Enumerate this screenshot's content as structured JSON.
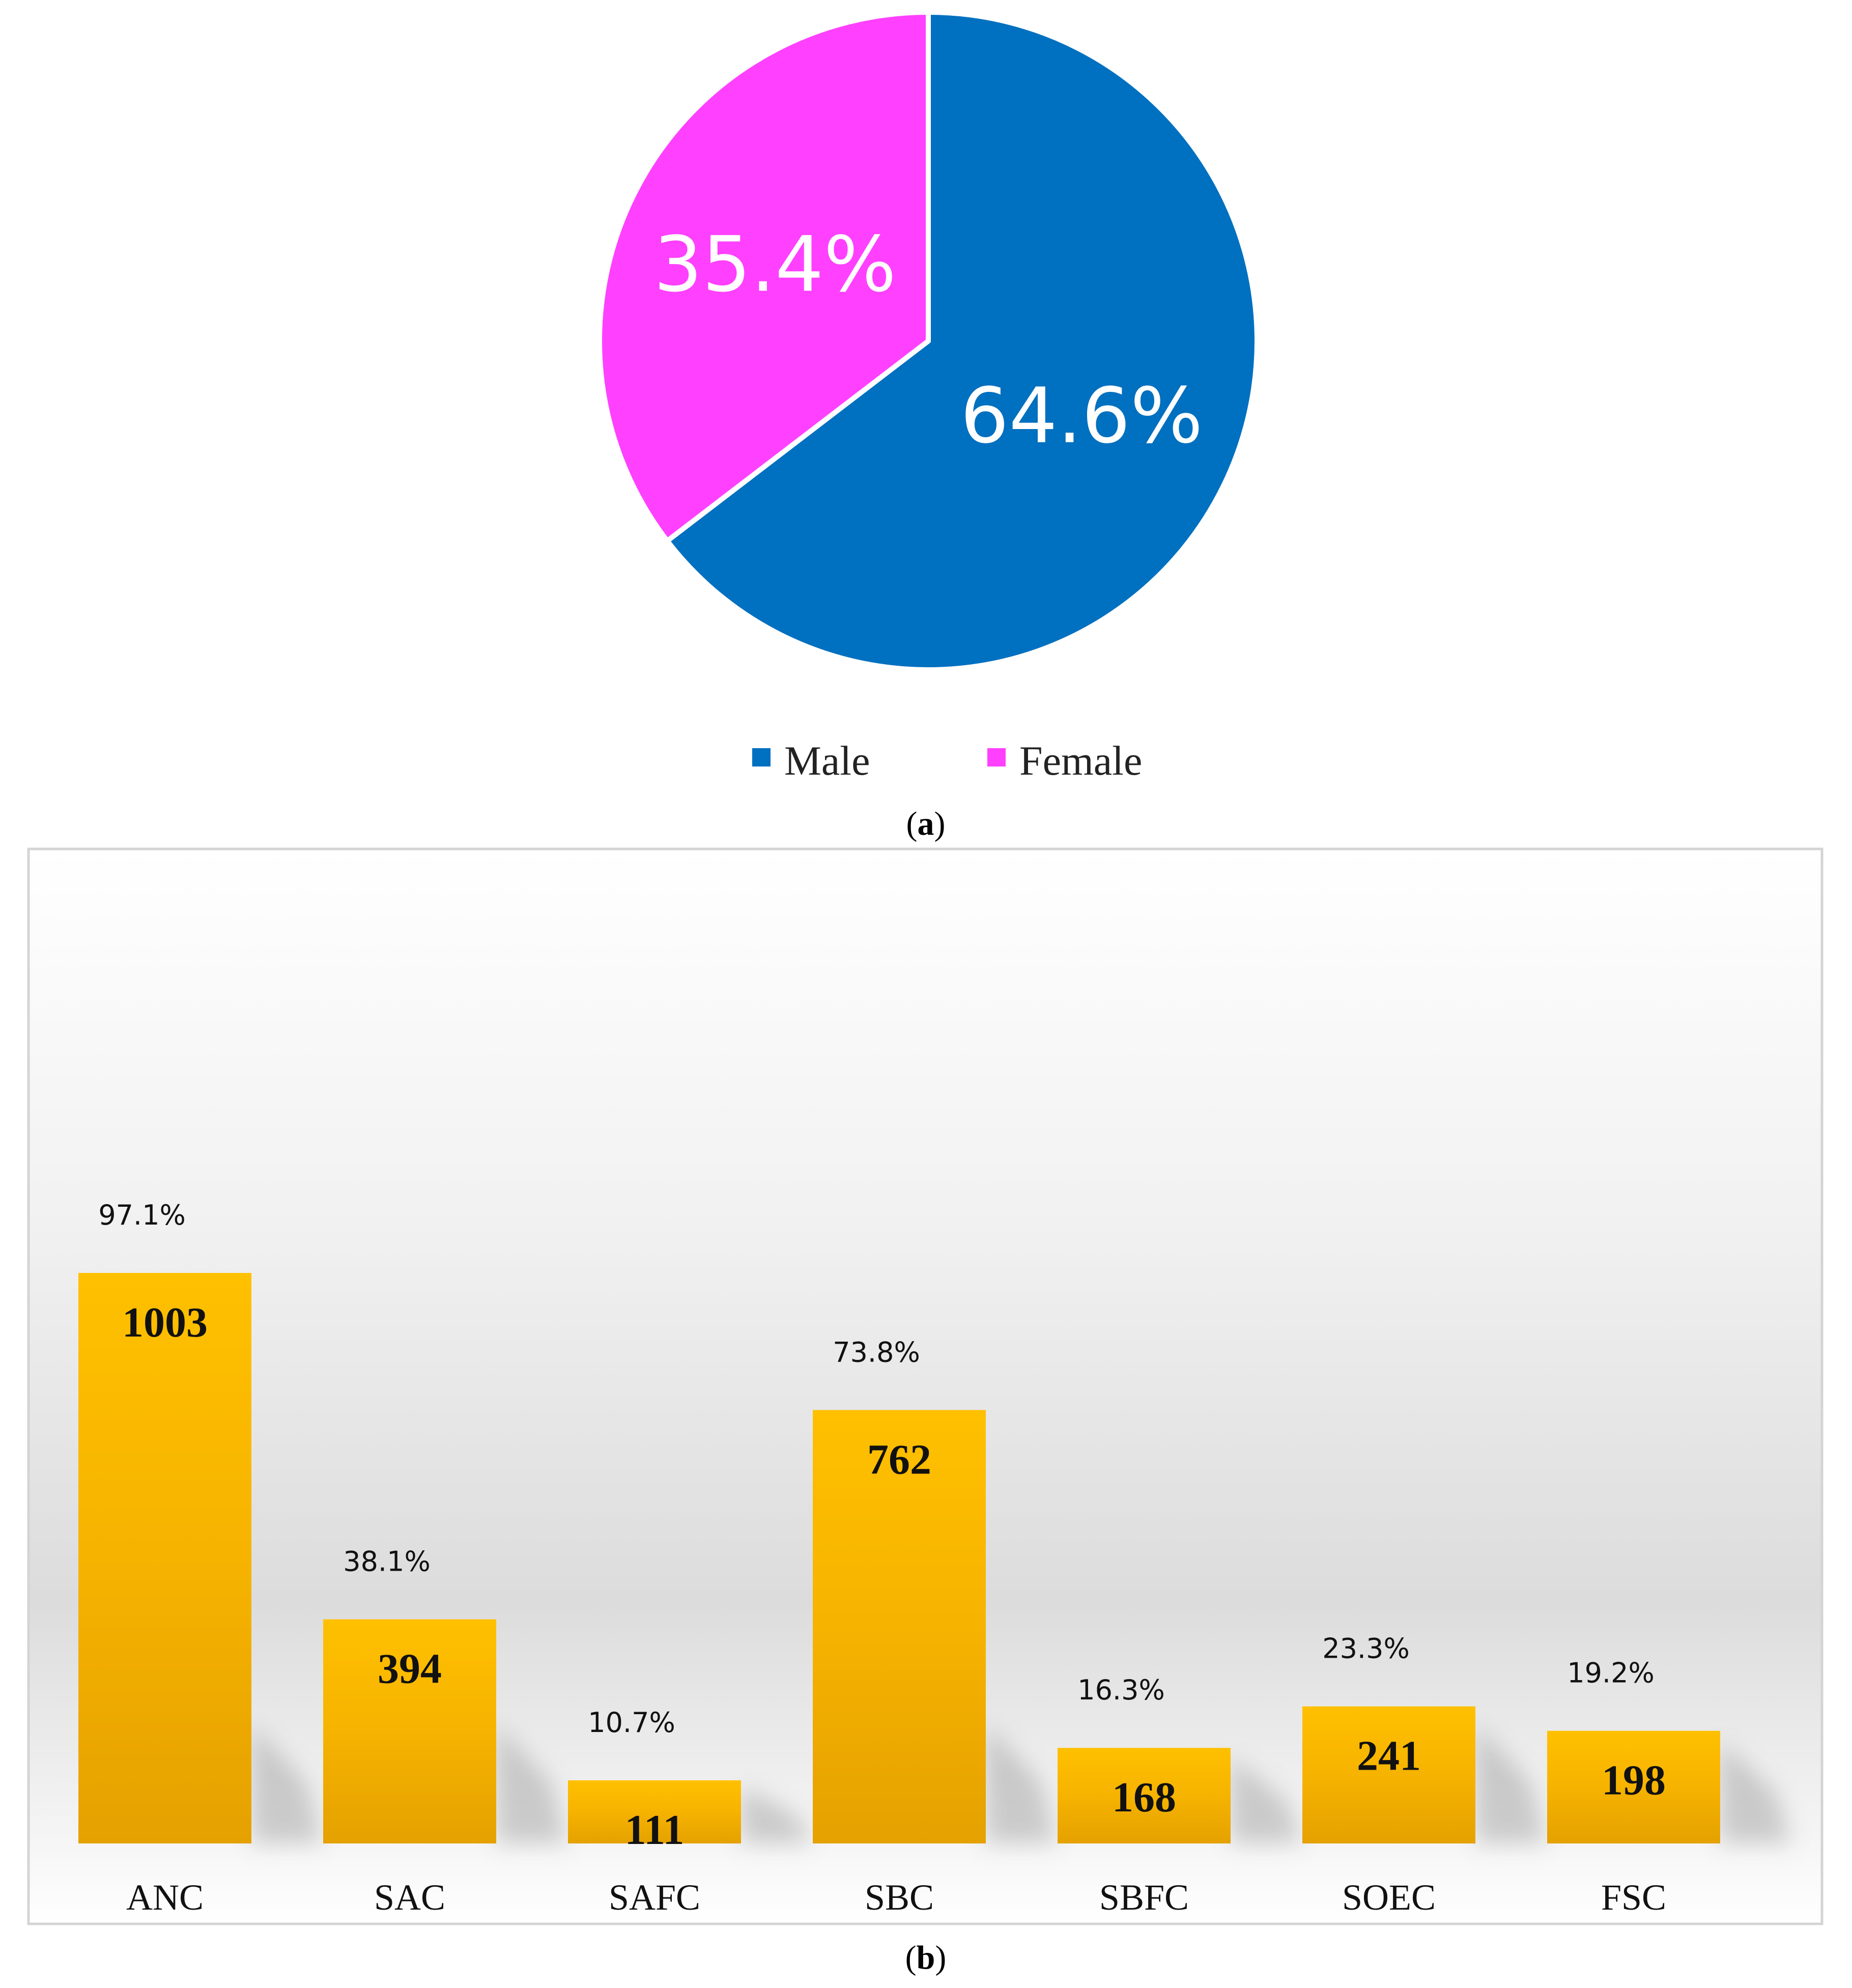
{
  "panel_a": {
    "label_open": "(",
    "label_letter": "a",
    "label_close": ")"
  },
  "panel_b": {
    "label_open": "(",
    "label_letter": "b",
    "label_close": ")"
  },
  "chart_data": [
    {
      "type": "pie",
      "categories": [
        "Male",
        "Female"
      ],
      "values": [
        64.6,
        35.4
      ],
      "data_labels": [
        "64.6%",
        "35.4%"
      ],
      "colors": [
        "#0070C0",
        "#FF40FF"
      ],
      "legend_position": "bottom",
      "start_angle": "12 o'clock",
      "direction": "clockwise"
    },
    {
      "type": "bar",
      "categories": [
        "ANC",
        "SAC",
        "SAFC",
        "SBC",
        "SBFC",
        "SOEC",
        "FSC"
      ],
      "values": [
        1003,
        394,
        111,
        762,
        168,
        241,
        198
      ],
      "value_labels": [
        "1003",
        "394",
        "111",
        "762",
        "168",
        "241",
        "198"
      ],
      "percent_labels": [
        "97.1%",
        "38.1%",
        "10.7%",
        "73.8%",
        "16.3%",
        "23.3%",
        "19.2%"
      ],
      "ylim": [
        0,
        1165
      ],
      "bar_color_top": "#FFC000",
      "bar_color_bottom": "#E5A100",
      "grid": false,
      "legend": "none",
      "title": "",
      "xlabel": "",
      "ylabel": ""
    }
  ]
}
